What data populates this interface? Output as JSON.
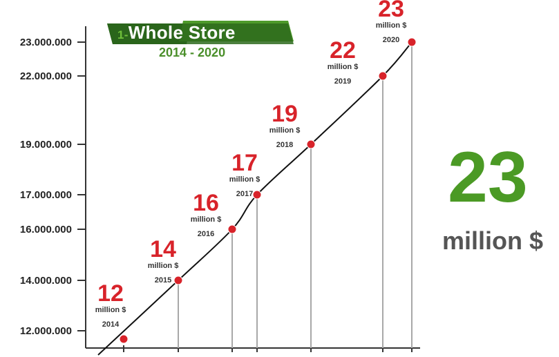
{
  "header": {
    "num": "1-",
    "title": "Whole Store",
    "years": "2014 - 2020"
  },
  "highlight": {
    "value": "23",
    "unit": "million $"
  },
  "colors": {
    "banner_dark": "#1f4d14",
    "banner_light": "#4f9a2b",
    "accent_green": "#4b9a25",
    "point_red": "#d8232a",
    "line": "#111111",
    "drop_line": "#a8a8a8"
  },
  "chart_data": {
    "type": "line",
    "title": "1-Whole Store",
    "subtitle": "2014 - 2020",
    "y_tick_labels": [
      "23.000.000",
      "22.000.000",
      "19.000.000",
      "17.000.000",
      "16.000.000",
      "14.000.000",
      "12.000.000"
    ],
    "y_ticks": [
      23000000,
      22000000,
      19000000,
      17000000,
      16000000,
      14000000,
      12000000
    ],
    "ylim": [
      11600000,
      24000000
    ],
    "grid": false,
    "legend": "none",
    "points": [
      {
        "year": "2014",
        "value": 12000000,
        "label": "12",
        "unit": "million $"
      },
      {
        "year": "2015",
        "value": 14000000,
        "label": "14",
        "unit": "million $"
      },
      {
        "year": "2016",
        "value": 16000000,
        "label": "16",
        "unit": "million $"
      },
      {
        "year": "2017",
        "value": 17000000,
        "label": "17",
        "unit": "million $"
      },
      {
        "year": "2018",
        "value": 19000000,
        "label": "19",
        "unit": "million $"
      },
      {
        "year": "2019",
        "value": 22000000,
        "label": "22",
        "unit": "million $"
      },
      {
        "year": "2020",
        "value": 23000000,
        "label": "23",
        "unit": "million $"
      }
    ]
  }
}
